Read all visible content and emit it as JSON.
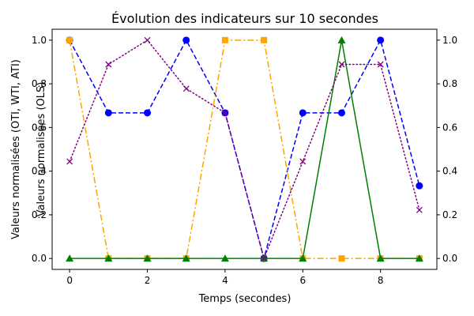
{
  "chart_data": {
    "type": "line",
    "title": "Évolution des indicateurs sur 10 secondes",
    "xlabel": "Temps (secondes)",
    "ylabel_left": "Valeurs normalisées (OTI, WTI, ATI)",
    "ylabel_right": "Valeurs normalisées (OLS)",
    "x": [
      0,
      1,
      2,
      3,
      4,
      5,
      6,
      7,
      8,
      9
    ],
    "xlim": [
      -0.45,
      9.45
    ],
    "ylim": [
      -0.05,
      1.05
    ],
    "x_ticks": [
      0,
      2,
      4,
      6,
      8
    ],
    "x_tick_labels": [
      "0",
      "2",
      "4",
      "6",
      "8"
    ],
    "y_ticks": [
      0.0,
      0.2,
      0.4,
      0.6,
      0.8,
      1.0
    ],
    "y_tick_labels": [
      "0.0",
      "0.2",
      "0.4",
      "0.6",
      "0.8",
      "1.0"
    ],
    "grid": false,
    "series": [
      {
        "axis": "left",
        "color": "#0000ff",
        "line_style": "dashed",
        "marker": "circle",
        "values": [
          1.0,
          0.667,
          0.667,
          1.0,
          0.667,
          0.0,
          0.667,
          0.667,
          1.0,
          0.333
        ]
      },
      {
        "axis": "left",
        "color": "#ffa500",
        "line_style": "dashdot",
        "marker": "square",
        "values": [
          1.0,
          0.0,
          0.0,
          0.0,
          1.0,
          1.0,
          0.0,
          0.0,
          0.0,
          0.0
        ]
      },
      {
        "axis": "left",
        "color": "#008000",
        "line_style": "solid",
        "marker": "triangle",
        "values": [
          0.0,
          0.0,
          0.0,
          0.0,
          0.0,
          0.0,
          0.0,
          1.0,
          0.0,
          0.0
        ]
      },
      {
        "axis": "right",
        "color": "#800080",
        "line_style": "dotted",
        "marker": "x",
        "values": [
          0.444,
          0.889,
          1.0,
          0.778,
          0.667,
          0.0,
          0.444,
          0.889,
          0.889,
          0.222
        ]
      }
    ]
  }
}
